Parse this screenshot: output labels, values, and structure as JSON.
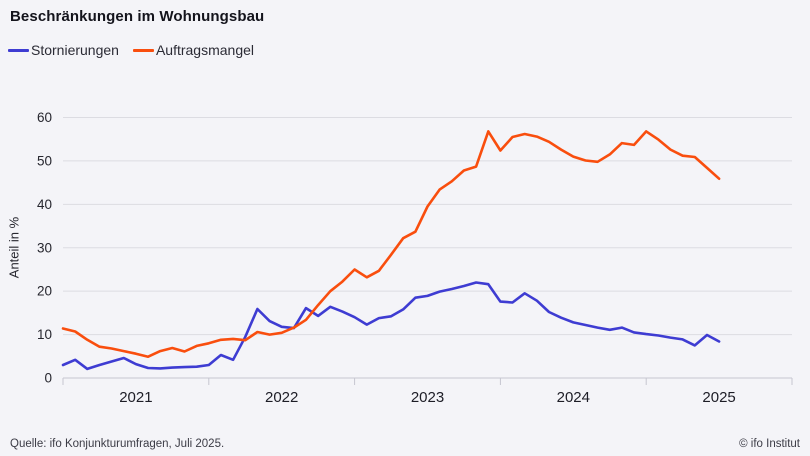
{
  "title": "Beschränkungen im Wohnungsbau",
  "footer": {
    "source": "Quelle: ifo Konjunkturumfragen,  Juli 2025.",
    "copyright": "© ifo Institut"
  },
  "colors": {
    "background": "#f4f4f8",
    "gridline": "#dcdce2",
    "axis_line": "#c6c6d0",
    "tick_text": "#26262e",
    "title_text": "#14141c"
  },
  "chart_data": {
    "type": "line",
    "title": "Beschränkungen im Wohnungsbau",
    "ylabel": "Anteil in %",
    "xlabel": "",
    "ylim": [
      0,
      60
    ],
    "yticks": [
      0,
      10,
      20,
      30,
      40,
      50,
      60
    ],
    "x_labels": [
      "2021",
      "2022",
      "2023",
      "2024",
      "2025"
    ],
    "x_unit": "month",
    "x_start": "2021-01",
    "x_end": "2025-07",
    "grid": "horizontal",
    "legend_position": "top-left",
    "series": [
      {
        "name": "Stornierungen",
        "color": "#3e3cd2",
        "values": [
          3.0,
          4.2,
          2.1,
          3.0,
          3.8,
          4.6,
          3.2,
          2.3,
          2.2,
          2.4,
          2.5,
          2.6,
          3.0,
          5.3,
          4.2,
          9.5,
          15.9,
          13.1,
          11.8,
          11.5,
          16.1,
          14.3,
          16.4,
          15.3,
          14.0,
          12.3,
          13.8,
          14.2,
          15.8,
          18.5,
          18.9,
          19.9,
          20.5,
          21.2,
          22.0,
          21.6,
          17.6,
          17.4,
          19.5,
          17.8,
          15.2,
          13.9,
          12.8,
          12.2,
          11.6,
          11.1,
          11.6,
          10.5,
          10.1,
          9.8,
          9.3,
          8.9,
          7.5,
          9.9,
          8.4
        ]
      },
      {
        "name": "Auftragsmangel",
        "color": "#f94e0e",
        "values": [
          11.4,
          10.7,
          8.8,
          7.2,
          6.8,
          6.2,
          5.6,
          4.9,
          6.2,
          6.9,
          6.1,
          7.4,
          8.0,
          8.8,
          9.0,
          8.7,
          10.6,
          10.0,
          10.4,
          11.6,
          13.4,
          16.8,
          20.0,
          22.2,
          25.0,
          23.2,
          24.7,
          28.4,
          32.2,
          33.7,
          39.5,
          43.4,
          45.3,
          47.8,
          48.7,
          56.8,
          52.4,
          55.5,
          56.2,
          55.6,
          54.4,
          52.6,
          51.0,
          50.1,
          49.8,
          51.5,
          54.1,
          53.7,
          56.8,
          54.9,
          52.6,
          51.2,
          50.9,
          48.4,
          45.9
        ]
      }
    ]
  }
}
